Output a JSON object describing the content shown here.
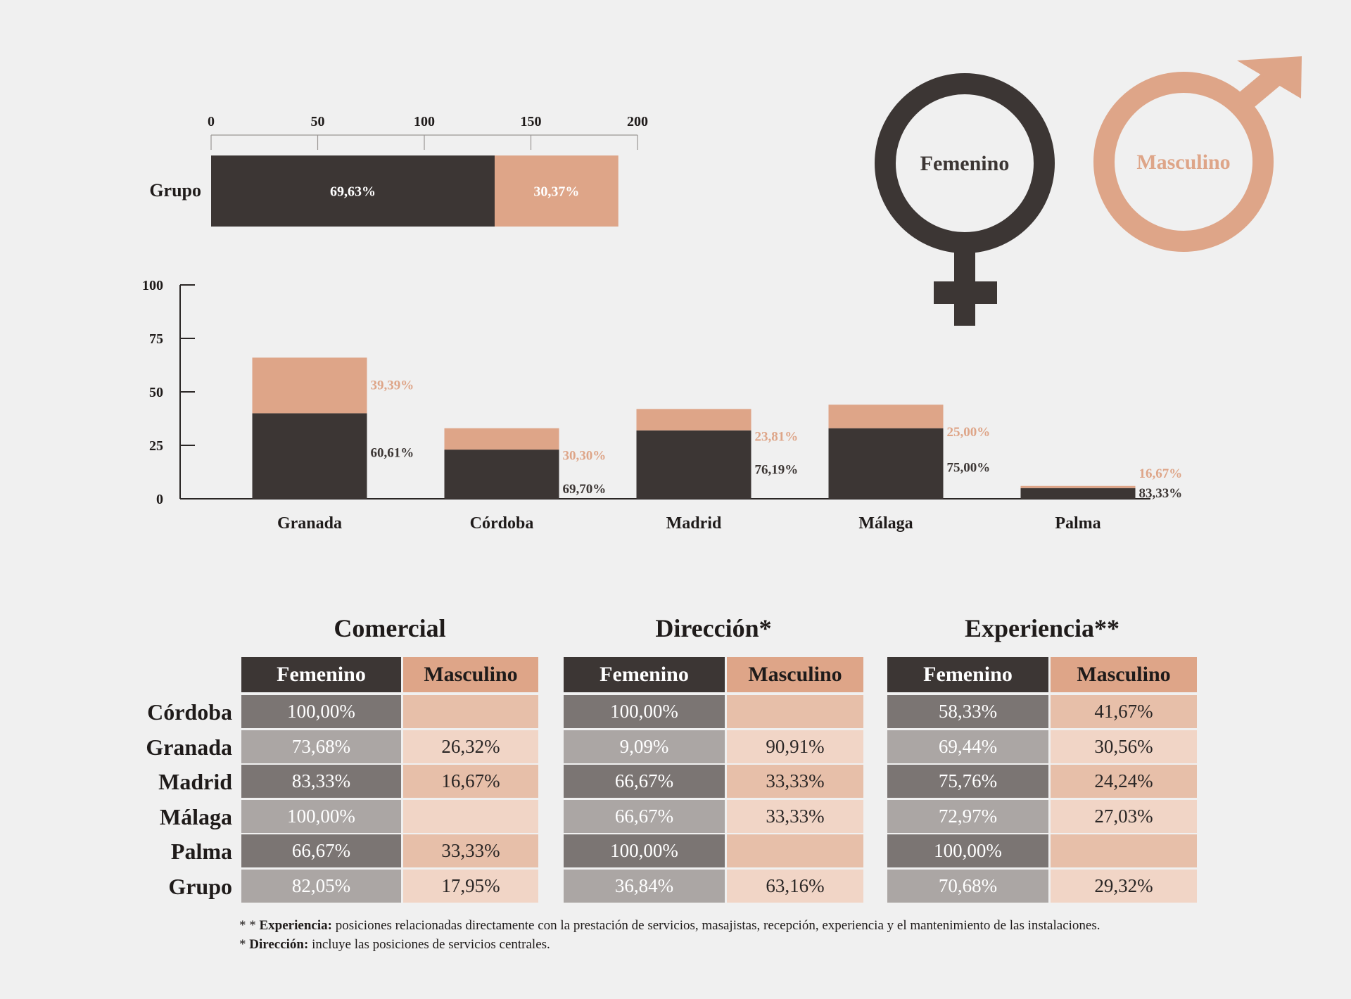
{
  "colors": {
    "femenino": "#3c3634",
    "masculino": "#dea588",
    "background": "#f0f0f0"
  },
  "legend": {
    "female_label": "Femenino",
    "male_label": "Masculino",
    "female_icon": "venus-icon",
    "male_icon": "mars-icon"
  },
  "chart_data": [
    {
      "type": "bar",
      "orientation": "horizontal-stacked",
      "categories": [
        "Grupo"
      ],
      "series": [
        {
          "values": [
            133
          ],
          "labels": [
            "69,63%"
          ]
        },
        {
          "values": [
            58
          ],
          "labels": [
            "30,37%"
          ]
        }
      ],
      "xlim": [
        0,
        200
      ],
      "xticks": [
        "0",
        "50",
        "100",
        "150",
        "200"
      ]
    },
    {
      "type": "bar",
      "orientation": "vertical-stacked",
      "categories": [
        "Granada",
        "Córdoba",
        "Madrid",
        "Málaga",
        "Palma"
      ],
      "series": [
        {
          "values": [
            40,
            23,
            32,
            33,
            5
          ],
          "labels": [
            "60,61%",
            "69,70%",
            "76,19%",
            "75,00%",
            "83,33%"
          ]
        },
        {
          "values": [
            26,
            10,
            10,
            11,
            1
          ],
          "labels": [
            "39,39%",
            "30,30%",
            "23,81%",
            "25,00%",
            "16,67%"
          ]
        }
      ],
      "ylim": [
        0,
        100
      ],
      "yticks": [
        "0",
        "25",
        "50",
        "75",
        "100"
      ]
    }
  ],
  "tables": {
    "col_f": "Femenino",
    "col_m": "Masculino",
    "rows": [
      "Córdoba",
      "Granada",
      "Madrid",
      "Málaga",
      "Palma",
      "Grupo"
    ],
    "sections": [
      {
        "title": "Comercial",
        "f": [
          "100,00%",
          "73,68%",
          "83,33%",
          "100,00%",
          "66,67%",
          "82,05%"
        ],
        "m": [
          "",
          "26,32%",
          "16,67%",
          "",
          "33,33%",
          "17,95%"
        ]
      },
      {
        "title": "Dirección*",
        "f": [
          "100,00%",
          "9,09%",
          "66,67%",
          "66,67%",
          "100,00%",
          "36,84%"
        ],
        "m": [
          "",
          "90,91%",
          "33,33%",
          "33,33%",
          "",
          "63,16%"
        ]
      },
      {
        "title": "Experiencia**",
        "f": [
          "58,33%",
          "69,44%",
          "75,76%",
          "72,97%",
          "100,00%",
          "70,68%"
        ],
        "m": [
          "41,67%",
          "30,56%",
          "24,24%",
          "27,03%",
          "",
          "29,32%"
        ]
      }
    ]
  },
  "notes": {
    "exp_marker": "* *",
    "exp_term": "Experiencia:",
    "exp_text": " posiciones relacionadas directamente con la prestación de servicios, masajistas, recepción, experiencia y el mantenimiento de las instalaciones.",
    "dir_marker": "*",
    "dir_term": "Dirección:",
    "dir_text": " incluye las posiciones de servicios centrales."
  }
}
